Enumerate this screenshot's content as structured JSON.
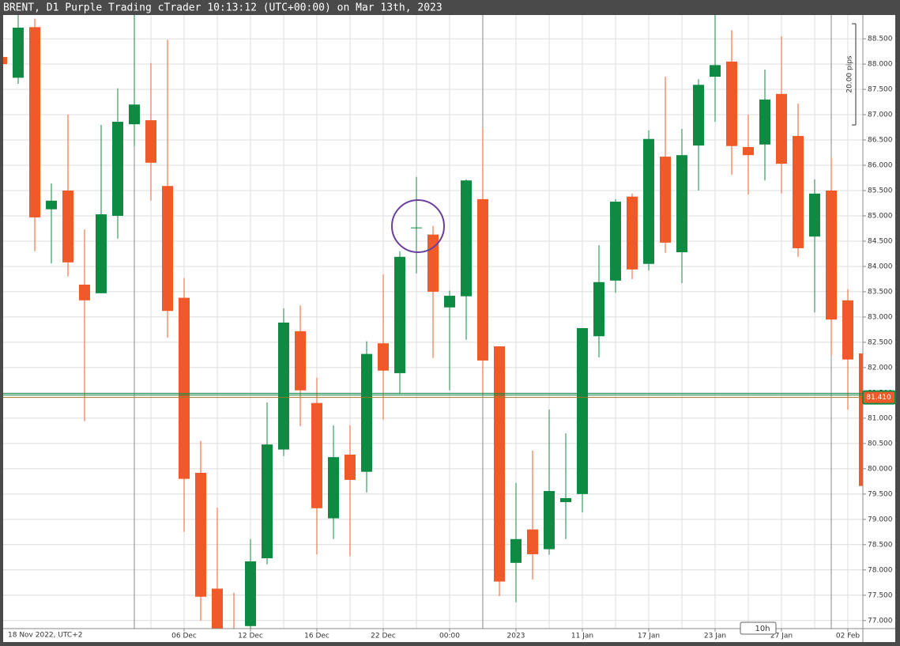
{
  "chart_data": {
    "type": "candlestick",
    "title": "BRENT, D1 Purple Trading cTrader 10:13:12 (UTC+00:00) on Mar 13th, 2023",
    "start_label": "18 Nov 2022, UTC+2",
    "categories": [
      null,
      null,
      null,
      null,
      null,
      null,
      null,
      null,
      null,
      null,
      null,
      "06 Dec",
      null,
      null,
      null,
      "12 Dec",
      null,
      null,
      null,
      "16 Dec",
      null,
      null,
      null,
      "22 Dec",
      null,
      null,
      null,
      "00:00",
      null,
      null,
      null,
      "2023",
      null,
      null,
      null,
      "11 Jan",
      null,
      null,
      null,
      "17 Jan",
      null,
      null,
      null,
      "23 Jan",
      null,
      null,
      null,
      "27 Jan",
      null,
      null,
      null,
      "02 Feb",
      null
    ],
    "open": [
      88.14,
      87.73,
      88.73,
      85.13,
      85.5,
      83.64,
      83.47,
      85.0,
      86.81,
      86.89,
      85.59,
      83.38,
      79.92,
      77.63,
      76.5,
      76.89,
      78.23,
      80.38,
      82.72,
      81.3,
      79.02,
      80.28,
      79.94,
      82.48,
      81.89,
      84.77,
      84.63,
      83.19,
      83.41,
      85.33,
      82.42,
      78.14,
      78.8,
      78.41,
      79.34,
      79.5,
      82.62,
      83.72,
      85.38,
      84.05,
      86.17,
      84.28,
      86.39,
      87.75,
      88.05,
      86.36,
      86.41,
      87.41,
      86.58,
      84.59,
      85.5,
      83.33,
      82.28
    ],
    "high": [
      88.15,
      88.97,
      88.9,
      85.64,
      87.0,
      84.73,
      86.8,
      87.52,
      89.0,
      88.02,
      88.48,
      83.77,
      80.55,
      79.23,
      77.55,
      78.61,
      81.31,
      83.17,
      83.23,
      81.8,
      80.86,
      80.86,
      82.52,
      83.84,
      84.3,
      85.77,
      84.8,
      83.52,
      85.72,
      86.73,
      82.42,
      79.72,
      80.36,
      81.17,
      80.7,
      82.78,
      84.42,
      85.33,
      85.44,
      86.69,
      87.75,
      86.72,
      87.7,
      89.0,
      88.67,
      87.0,
      87.89,
      88.55,
      87.22,
      85.72,
      86.16,
      83.55,
      82.4
    ],
    "low": [
      87.99,
      87.61,
      84.3,
      84.06,
      83.8,
      80.94,
      83.47,
      84.55,
      86.38,
      85.3,
      82.59,
      78.75,
      77.0,
      76.7,
      76.0,
      76.8,
      78.11,
      80.25,
      80.84,
      78.31,
      78.61,
      78.27,
      79.53,
      80.97,
      81.48,
      83.86,
      82.19,
      81.55,
      82.55,
      81.45,
      77.48,
      77.36,
      77.81,
      78.3,
      78.61,
      79.14,
      82.2,
      83.48,
      83.75,
      83.92,
      84.27,
      83.67,
      85.5,
      86.86,
      85.81,
      85.42,
      85.7,
      85.44,
      84.19,
      83.09,
      82.23,
      81.17,
      79.5
    ],
    "close": [
      88.0,
      88.72,
      84.97,
      85.3,
      84.08,
      83.33,
      85.03,
      86.86,
      87.2,
      86.05,
      83.12,
      79.8,
      77.47,
      76.8,
      76.2,
      78.17,
      80.48,
      82.89,
      81.55,
      79.22,
      80.23,
      79.78,
      82.27,
      81.94,
      84.19,
      84.77,
      83.5,
      83.42,
      85.7,
      82.14,
      77.77,
      78.61,
      78.31,
      79.56,
      79.42,
      82.78,
      83.69,
      85.28,
      83.94,
      86.52,
      84.47,
      86.2,
      87.59,
      87.98,
      86.38,
      86.2,
      87.3,
      86.03,
      84.36,
      85.44,
      82.95,
      82.16,
      79.66
    ],
    "up_color": "#0f8a43",
    "down_color": "#f05a28",
    "ylim": [
      76.84,
      88.97
    ],
    "yticks": [
      {
        "value": 88.5,
        "label": "88.500"
      },
      {
        "value": 88.0,
        "label": "88.000"
      },
      {
        "value": 87.5,
        "label": "87.500"
      },
      {
        "value": 87.0,
        "label": "87.000"
      },
      {
        "value": 86.5,
        "label": "86.500"
      },
      {
        "value": 86.0,
        "label": "86.000"
      },
      {
        "value": 85.5,
        "label": "85.500"
      },
      {
        "value": 85.0,
        "label": "85.000"
      },
      {
        "value": 84.5,
        "label": "84.500"
      },
      {
        "value": 84.0,
        "label": "84.000"
      },
      {
        "value": 83.5,
        "label": "83.500"
      },
      {
        "value": 83.0,
        "label": "83.000"
      },
      {
        "value": 82.5,
        "label": "82.500"
      },
      {
        "value": 82.0,
        "label": "82.000"
      },
      {
        "value": 81.5,
        "label": "81.500"
      },
      {
        "value": 81.0,
        "label": "81.000"
      },
      {
        "value": 80.5,
        "label": "80.500"
      },
      {
        "value": 80.0,
        "label": "80.000"
      },
      {
        "value": 79.5,
        "label": "79.500"
      },
      {
        "value": 79.0,
        "label": "79.000"
      },
      {
        "value": 78.5,
        "label": "78.500"
      },
      {
        "value": 78.0,
        "label": "78.000"
      },
      {
        "value": 77.5,
        "label": "77.500"
      },
      {
        "value": 77.0,
        "label": "77.000"
      }
    ],
    "grid": true,
    "current_price": {
      "value": 81.41,
      "label": "81.410"
    },
    "measure_label": "20.00 pips",
    "time_label": "10h"
  }
}
